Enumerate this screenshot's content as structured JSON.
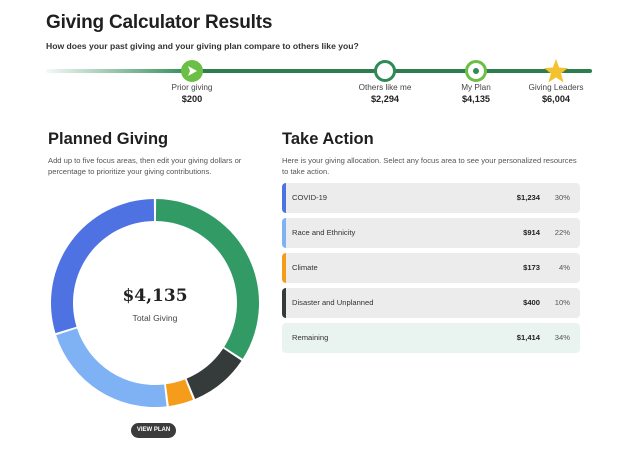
{
  "header": {
    "title": "Giving Calculator Results",
    "subtitle": "How does your past giving and your giving plan compare to others like you?"
  },
  "milestones": [
    {
      "label": "Prior giving",
      "value": "$200",
      "icon": "play-icon"
    },
    {
      "label": "Others like me",
      "value": "$2,294",
      "icon": "circle-icon"
    },
    {
      "label": "My Plan",
      "value": "$4,135",
      "icon": "target-icon"
    },
    {
      "label": "Giving Leaders",
      "value": "$6,004",
      "icon": "star-icon"
    }
  ],
  "planned": {
    "heading": "Planned Giving",
    "description": "Add up to five focus areas, then edit your giving dollars or percentage to prioritize your giving contributions.",
    "total_amount": "$4,135",
    "total_label": "Total Giving",
    "view_button": "VIEW PLAN"
  },
  "action": {
    "heading": "Take Action",
    "description": "Here is your giving allocation. Select any focus area to see your personalized resources to take action.",
    "rows": [
      {
        "name": "COVID-19",
        "amount": "$1,234",
        "percent": "30%",
        "color": "#4f72e3"
      },
      {
        "name": "Race and Ethnicity",
        "amount": "$914",
        "percent": "22%",
        "color": "#7eb2f5"
      },
      {
        "name": "Climate",
        "amount": "$173",
        "percent": "4%",
        "color": "#f59c1a"
      },
      {
        "name": "Disaster and Unplanned",
        "amount": "$400",
        "percent": "10%",
        "color": "#353a3b"
      },
      {
        "name": "Remaining",
        "amount": "$1,414",
        "percent": "34%",
        "color": "#319a65"
      }
    ]
  },
  "colors": {
    "brand_green": "#2e8b57",
    "light_green": "#6bbf45",
    "star_gold": "#f2c230"
  }
}
